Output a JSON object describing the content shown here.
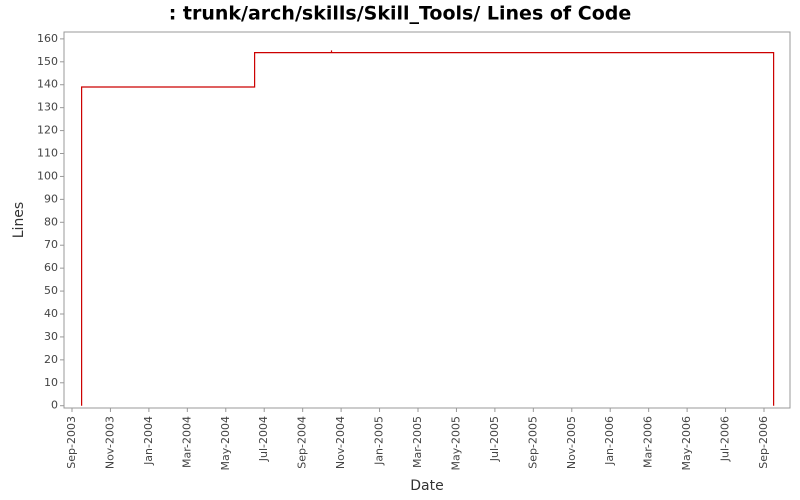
{
  "chart_data": {
    "type": "line",
    "title": ": trunk/arch/skills/Skill_Tools/ Lines of Code",
    "x_label": "Date",
    "y_label": "Lines",
    "x": [
      "2003-09",
      "2003-09",
      "2004-06",
      "2004-06",
      "2004-10",
      "2004-10",
      "2004-10",
      "2006-09",
      "2006-09"
    ],
    "series": [
      {
        "color": "#cc0000",
        "values": [
          0,
          139,
          139,
          154,
          154,
          155,
          154,
          154,
          0
        ]
      }
    ],
    "xlim": [
      "2003-09",
      "2006-09"
    ],
    "xticks": [
      {
        "value": "2003-09",
        "label": "Sep-2003"
      },
      {
        "value": "2003-11",
        "label": "Nov-2003"
      },
      {
        "value": "2004-01",
        "label": "Jan-2004"
      },
      {
        "value": "2004-03",
        "label": "Mar-2004"
      },
      {
        "value": "2004-05",
        "label": "May-2004"
      },
      {
        "value": "2004-07",
        "label": "Jul-2004"
      },
      {
        "value": "2004-09",
        "label": "Sep-2004"
      },
      {
        "value": "2004-11",
        "label": "Nov-2004"
      },
      {
        "value": "2005-01",
        "label": "Jan-2005"
      },
      {
        "value": "2005-03",
        "label": "Mar-2005"
      },
      {
        "value": "2005-05",
        "label": "May-2005"
      },
      {
        "value": "2005-07",
        "label": "Jul-2005"
      },
      {
        "value": "2005-09",
        "label": "Sep-2005"
      },
      {
        "value": "2005-11",
        "label": "Nov-2005"
      },
      {
        "value": "2006-01",
        "label": "Jan-2006"
      },
      {
        "value": "2006-03",
        "label": "Mar-2006"
      },
      {
        "value": "2006-05",
        "label": "May-2006"
      },
      {
        "value": "2006-07",
        "label": "Jul-2006"
      },
      {
        "value": "2006-09",
        "label": "Sep-2006"
      }
    ],
    "ylim": [
      -1,
      163
    ],
    "yticks": [
      0,
      10,
      20,
      30,
      40,
      50,
      60,
      70,
      80,
      90,
      100,
      110,
      120,
      130,
      140,
      150,
      160
    ]
  }
}
